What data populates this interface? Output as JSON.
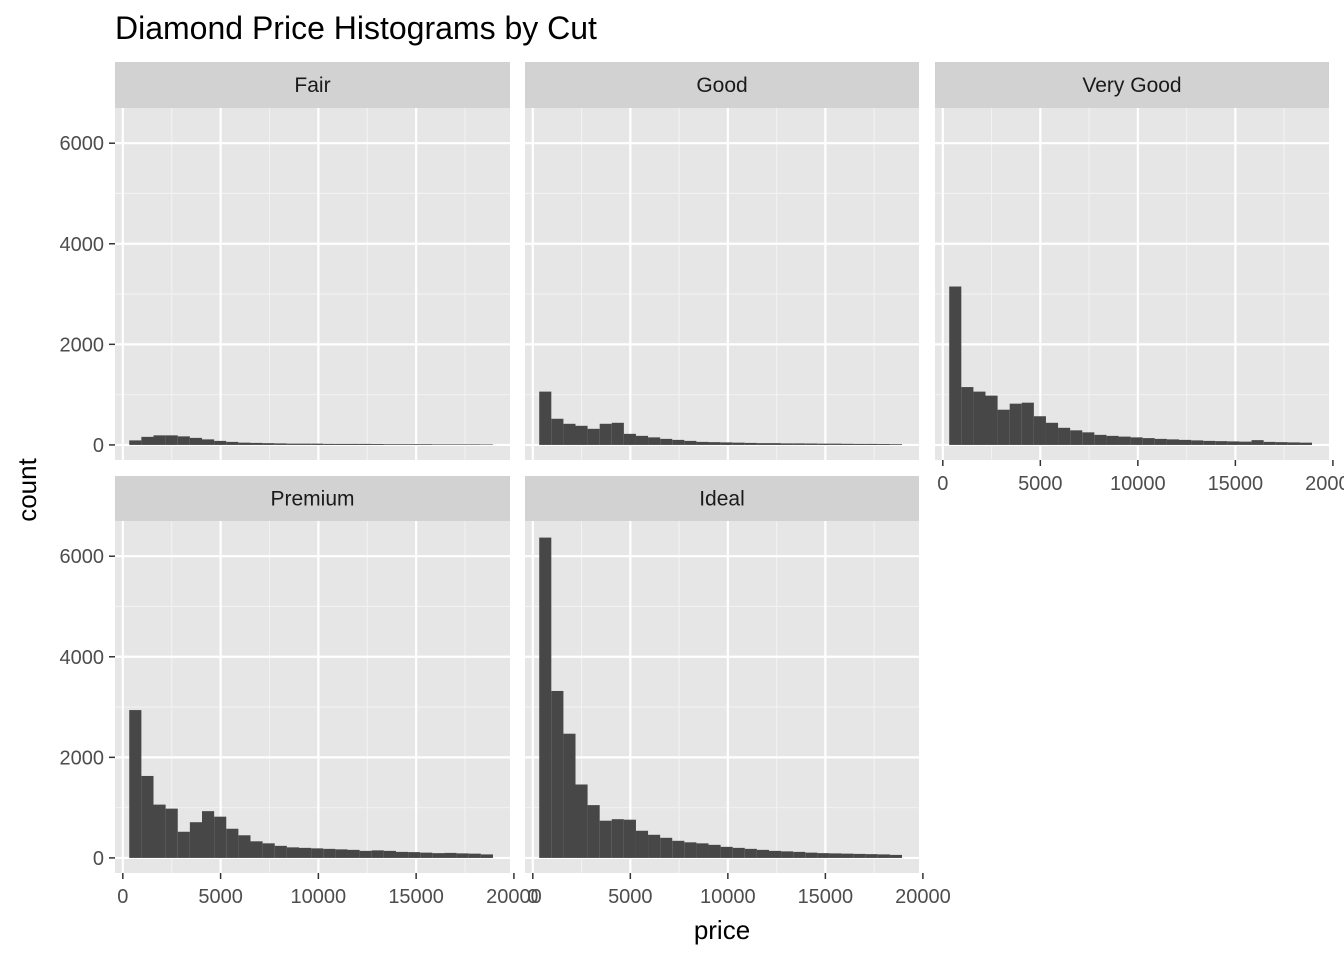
{
  "chart_data": {
    "type": "bar",
    "title": "Diamond Price Histograms by Cut",
    "xlabel": "price",
    "ylabel": "count",
    "xlim": [
      -400,
      19800
    ],
    "ylim": [
      -300,
      6700
    ],
    "bin_width": 620,
    "bin_starts": [
      329,
      949,
      1569,
      2189,
      2809,
      3429,
      4049,
      4669,
      5289,
      5909,
      6529,
      7149,
      7769,
      8389,
      9009,
      9629,
      10249,
      10869,
      11489,
      12109,
      12729,
      13349,
      13969,
      14589,
      15209,
      15829,
      16449,
      17069,
      17689,
      18309
    ],
    "x_ticks": [
      0,
      5000,
      10000,
      15000,
      20000
    ],
    "x_tick_labels": [
      "0",
      "5000",
      "10000",
      "15000",
      "20000"
    ],
    "y_ticks": [
      0,
      2000,
      4000,
      6000
    ],
    "y_tick_labels": [
      "0",
      "2000",
      "4000",
      "6000"
    ],
    "grid": true,
    "bar_color": "#474747",
    "panel_bg": "#e6e6e6",
    "strip_bg": "#d2d2d2",
    "panels": [
      {
        "name": "Fair",
        "values": [
          90,
          160,
          190,
          190,
          170,
          140,
          110,
          80,
          60,
          45,
          40,
          35,
          30,
          25,
          25,
          25,
          20,
          20,
          20,
          20,
          18,
          15,
          15,
          15,
          15,
          12,
          12,
          12,
          12,
          10
        ]
      },
      {
        "name": "Good",
        "values": [
          1060,
          520,
          420,
          380,
          320,
          420,
          440,
          220,
          180,
          150,
          120,
          100,
          80,
          60,
          55,
          50,
          45,
          40,
          35,
          35,
          30,
          30,
          28,
          25,
          25,
          22,
          20,
          20,
          18,
          15
        ]
      },
      {
        "name": "Very Good",
        "values": [
          3150,
          1150,
          1060,
          980,
          700,
          820,
          840,
          570,
          440,
          340,
          290,
          250,
          200,
          180,
          165,
          150,
          135,
          120,
          110,
          100,
          90,
          80,
          75,
          70,
          65,
          95,
          60,
          55,
          50,
          45
        ]
      },
      {
        "name": "Premium",
        "values": [
          2940,
          1630,
          1060,
          980,
          520,
          710,
          930,
          820,
          580,
          450,
          330,
          290,
          240,
          210,
          200,
          190,
          180,
          170,
          160,
          140,
          150,
          140,
          120,
          115,
          105,
          95,
          100,
          90,
          85,
          70
        ]
      },
      {
        "name": "Ideal",
        "values": [
          6370,
          3320,
          2470,
          1460,
          1050,
          740,
          770,
          760,
          540,
          460,
          400,
          340,
          310,
          290,
          260,
          220,
          200,
          180,
          160,
          140,
          130,
          120,
          105,
          95,
          90,
          85,
          80,
          75,
          70,
          60
        ]
      }
    ]
  }
}
